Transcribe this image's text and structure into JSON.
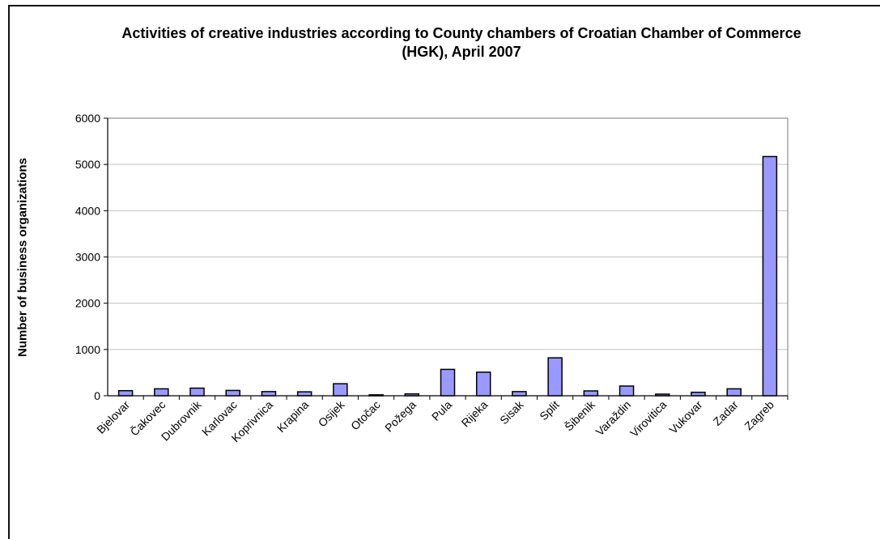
{
  "chart_data": {
    "type": "bar",
    "title": "Activities of creative industries according to County chambers of Croatian Chamber of Commerce (HGK), April 2007",
    "xlabel": "",
    "ylabel": "Number of business organizations",
    "ylim": [
      0,
      6000
    ],
    "yticks": [
      0,
      1000,
      2000,
      3000,
      4000,
      5000,
      6000
    ],
    "grid": true,
    "legend": "none",
    "categories": [
      "Bjelovar",
      "Čakovec",
      "Dubrovnik",
      "Karlovac",
      "Koprivnica",
      "Krapina",
      "Osijek",
      "Otočac",
      "Požega",
      "Pula",
      "Rijeka",
      "Sisak",
      "Split",
      "Šibenik",
      "Varaždin",
      "Virovitica",
      "Vukovar",
      "Zadar",
      "Zagreb"
    ],
    "values": [
      110,
      150,
      165,
      115,
      90,
      85,
      260,
      20,
      40,
      570,
      510,
      90,
      820,
      105,
      210,
      35,
      75,
      150,
      5170
    ],
    "colors": {
      "bar_fill": "#9999ff",
      "bar_stroke": "#000000",
      "grid": "#c0c0c0"
    }
  }
}
